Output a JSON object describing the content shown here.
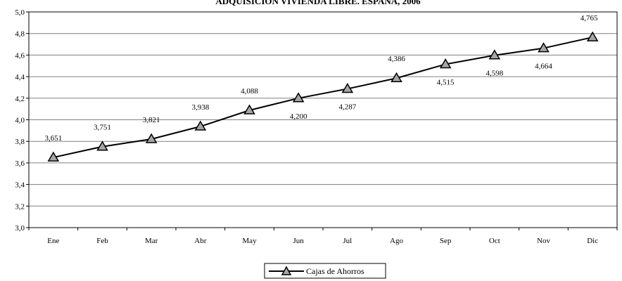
{
  "chart_data": {
    "type": "line",
    "title": "ADQUISICIÓN VIVIENDA LIBRE. ESPAÑA, 2006",
    "categories": [
      "Ene",
      "Feb",
      "Mar",
      "Abr",
      "May",
      "Jun",
      "Jul",
      "Ago",
      "Sep",
      "Oct",
      "Nov",
      "Dic"
    ],
    "series": [
      {
        "name": "Cajas de Ahorros",
        "values": [
          3.651,
          3.751,
          3.821,
          3.938,
          4.088,
          4.2,
          4.287,
          4.386,
          4.515,
          4.598,
          4.664,
          4.765
        ],
        "labels": [
          "3,651",
          "3,751",
          "3,821",
          "3,938",
          "4,088",
          "4,200",
          "4,287",
          "4,386",
          "4,515",
          "4,598",
          "4,664",
          "4,765"
        ],
        "marker": "triangle",
        "line_color": "#000000",
        "marker_color": "#a6a6a6"
      }
    ],
    "y_ticks": [
      "3,0",
      "3,2",
      "3,4",
      "3,6",
      "3,8",
      "4,0",
      "4,2",
      "4,4",
      "4,6",
      "4,8",
      "5,0"
    ],
    "ylim": [
      3.0,
      5.0
    ],
    "y_step": 0.2,
    "grid": "horizontal",
    "legend": "bottom-center"
  }
}
